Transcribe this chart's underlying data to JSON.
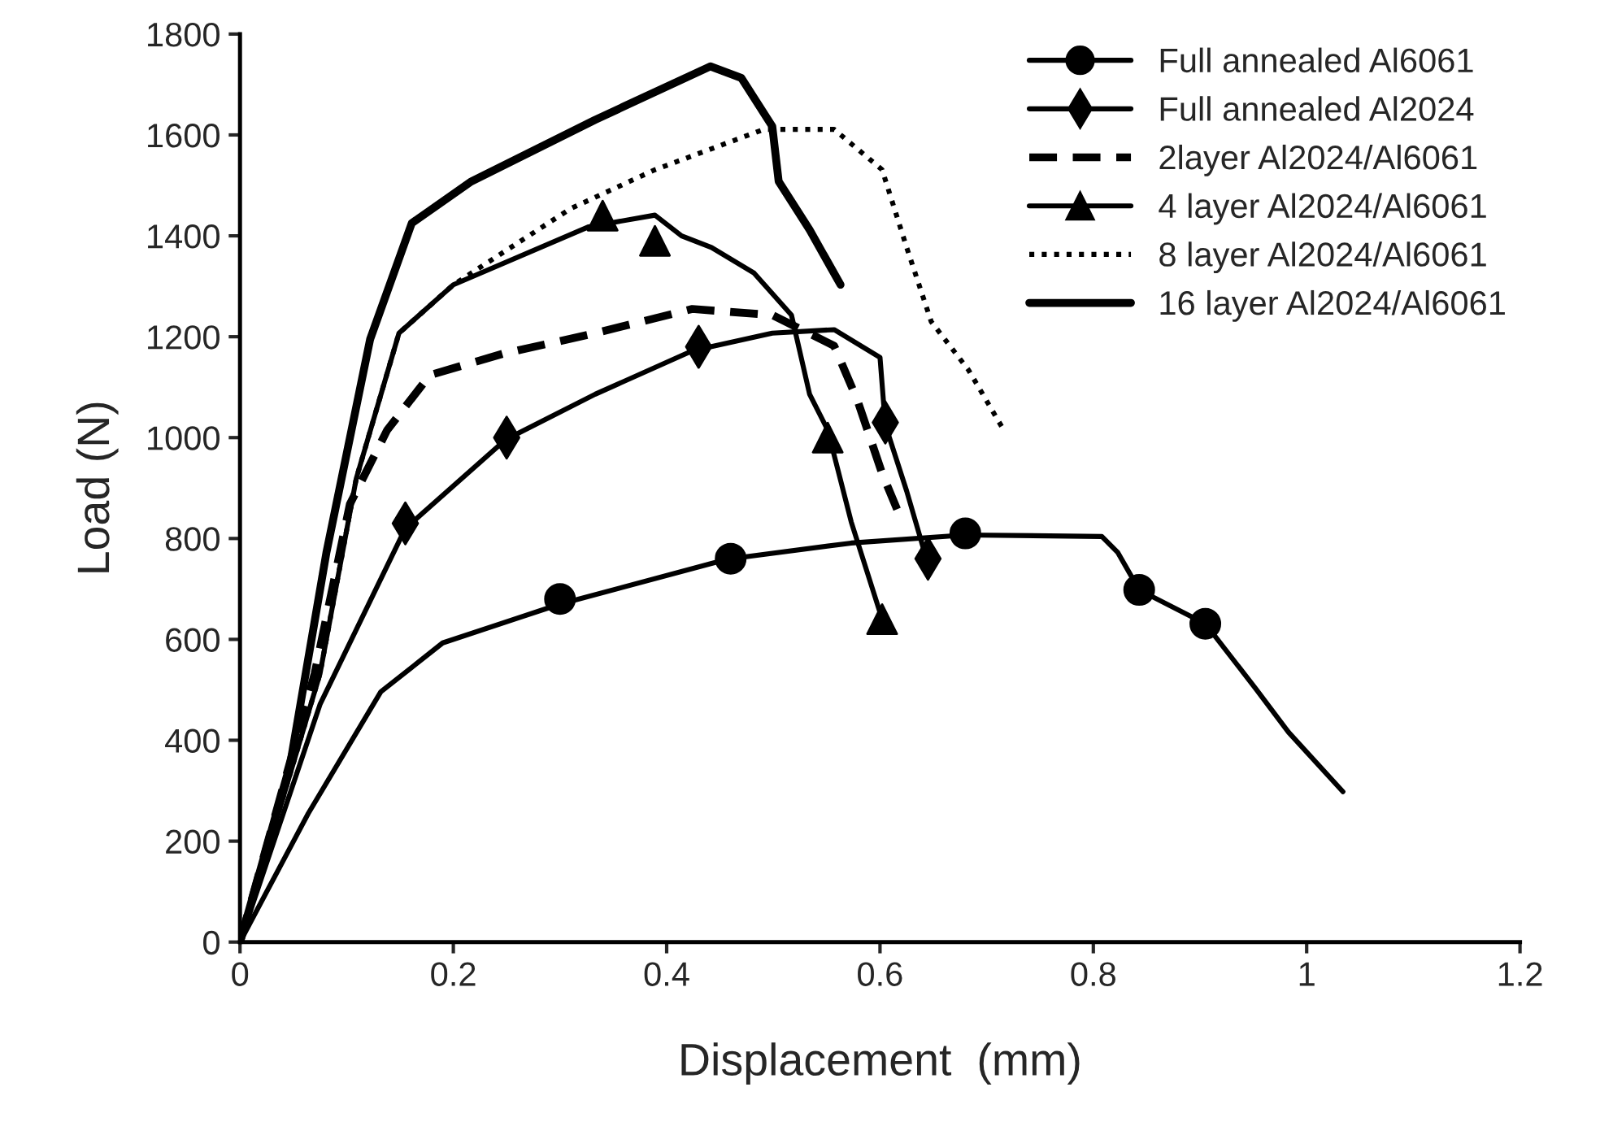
{
  "chart_data": {
    "type": "line",
    "xlabel": "Displacement  (mm)",
    "ylabel": "Load (N)",
    "xlim": [
      0,
      1.2
    ],
    "ylim": [
      0,
      1800
    ],
    "xticks": [
      0,
      0.2,
      0.4,
      0.6,
      0.8,
      1,
      1.2
    ],
    "yticks": [
      0,
      200,
      400,
      600,
      800,
      1000,
      1200,
      1400,
      1600,
      1800
    ],
    "legend": "top right",
    "series": [
      {
        "name": "Full annealed Al6061",
        "color": "#000000",
        "line_style": "solid",
        "x": [
          0,
          0.064,
          0.132,
          0.19,
          0.3,
          0.457,
          0.573,
          0.68,
          0.808,
          0.823,
          0.843,
          0.905,
          0.952,
          0.983,
          1.034
        ],
        "values": [
          0,
          255,
          496,
          593,
          670,
          759,
          791,
          807,
          804,
          772,
          698,
          631,
          503,
          416,
          298
        ]
      },
      {
        "type": "scatter",
        "color": "#000000",
        "marker": "circle",
        "x": [
          0.3,
          0.46,
          0.68,
          0.843,
          0.905
        ],
        "values": [
          680,
          760,
          810,
          698,
          631
        ]
      },
      {
        "name": "Full annealed Al2024",
        "color": "#000000",
        "line_style": "solid",
        "x": [
          0,
          0.075,
          0.155,
          0.249,
          0.333,
          0.424,
          0.499,
          0.557,
          0.6,
          0.605,
          0.625,
          0.645
        ],
        "values": [
          0,
          471,
          820,
          996,
          1086,
          1172,
          1207,
          1214,
          1159,
          1025,
          894,
          749
        ]
      },
      {
        "type": "scatter",
        "color": "#000000",
        "marker": "diamond",
        "x": [
          0.155,
          0.25,
          0.43,
          0.605,
          0.645
        ],
        "values": [
          830,
          1000,
          1180,
          1030,
          760
        ]
      },
      {
        "name": "2layer Al2024/Al6061",
        "color": "#000000",
        "line_style": "dashed",
        "x": [
          0,
          0.07,
          0.103,
          0.138,
          0.178,
          0.246,
          0.333,
          0.424,
          0.499,
          0.557,
          0.579,
          0.602,
          0.616
        ],
        "values": [
          0,
          532,
          868,
          1015,
          1124,
          1166,
          1207,
          1255,
          1243,
          1182,
          1073,
          929,
          858
        ]
      },
      {
        "name": "4 layer Al2024/Al6061",
        "color": "#000000",
        "line_style": "solid",
        "x": [
          0,
          0.075,
          0.109,
          0.149,
          0.2,
          0.327,
          0.389,
          0.414,
          0.442,
          0.482,
          0.517,
          0.534,
          0.551,
          0.573,
          0.602
        ],
        "values": [
          0,
          532,
          919,
          1207,
          1303,
          1418,
          1441,
          1400,
          1377,
          1326,
          1243,
          1086,
          1015,
          833,
          640
        ]
      },
      {
        "type": "scatter",
        "color": "#000000",
        "marker": "triangle",
        "x": [
          0.34,
          0.389,
          0.551,
          0.602
        ],
        "values": [
          1440,
          1390,
          1000,
          640
        ]
      },
      {
        "name": "8 layer Al2024/Al6061",
        "color": "#000000",
        "line_style": "dotted",
        "x": [
          0,
          0.075,
          0.109,
          0.149,
          0.2,
          0.31,
          0.389,
          0.491,
          0.557,
          0.602,
          0.625,
          0.648,
          0.683,
          0.716
        ],
        "values": [
          0,
          532,
          919,
          1207,
          1303,
          1454,
          1531,
          1611,
          1611,
          1531,
          1377,
          1230,
          1134,
          1015
        ]
      },
      {
        "name": "16 layer Al2024/Al6061",
        "color": "#000000",
        "line_style": "solid",
        "x": [
          0,
          0.047,
          0.081,
          0.122,
          0.161,
          0.217,
          0.333,
          0.441,
          0.47,
          0.499,
          0.505,
          0.534,
          0.563
        ],
        "values": [
          0,
          352,
          772,
          1195,
          1425,
          1508,
          1630,
          1736,
          1713,
          1617,
          1508,
          1412,
          1303
        ]
      }
    ]
  }
}
